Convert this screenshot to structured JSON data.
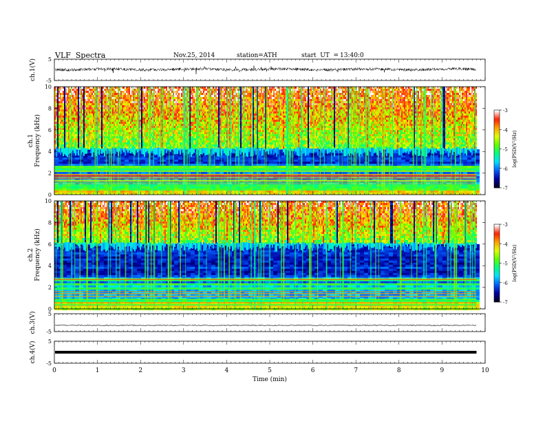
{
  "header": {
    "title": "VLF  Spectra",
    "date": "Nov.25, 2014",
    "station": "station=ATH",
    "start_label": "start  UT  =",
    "start_time": "13:40:0"
  },
  "chart_data": {
    "type": "heatmap",
    "xlabel": "Time  (min)",
    "xlim": [
      0,
      10
    ],
    "xticks": [
      "0",
      "1",
      "2",
      "3",
      "4",
      "5",
      "6",
      "7",
      "8",
      "9",
      "10"
    ],
    "data_end_min": 9.8,
    "panels": [
      {
        "name": "ch.1 waveform",
        "type": "line",
        "ylabel": "ch.1(V)",
        "ylim": [
          -5,
          5
        ],
        "yticks": [
          "5",
          "-5"
        ]
      },
      {
        "name": "ch.1 spectrogram",
        "type": "heatmap",
        "ylabel": "ch.1\nFrequency  (kHz)",
        "ylim": [
          0,
          10
        ],
        "yticks": [
          "0",
          "2",
          "4",
          "6",
          "8",
          "10"
        ],
        "noise_floor_khz": 4.2,
        "colorbar_label": "log(PSD(V²/Hz)",
        "colorbar_range": [
          -7,
          -3
        ],
        "colorbar_ticks": [
          "-3",
          "-4",
          "-5",
          "-6",
          "-7"
        ],
        "colors": [
          "#000020",
          "#0000a0",
          "#0060ff",
          "#00e0ff",
          "#00ff80",
          "#60ff00",
          "#e0ff00",
          "#ffa000",
          "#ff2000",
          "#ffffff"
        ]
      },
      {
        "name": "ch.2 spectrogram",
        "type": "heatmap",
        "ylabel": "ch.2\nFrequency  (kHz)",
        "ylim": [
          0,
          10
        ],
        "yticks": [
          "0",
          "2",
          "4",
          "6",
          "8",
          "10"
        ],
        "noise_floor_khz": 6.0,
        "colorbar_label": "log(PSD(V²/Hz)",
        "colorbar_range": [
          -7,
          -3
        ],
        "colorbar_ticks": [
          "-3",
          "-4",
          "-5",
          "-6",
          "-7"
        ],
        "colors": [
          "#000020",
          "#0000a0",
          "#0060ff",
          "#00e0ff",
          "#00ff80",
          "#60ff00",
          "#e0ff00",
          "#ffa000",
          "#ff2000",
          "#ffffff"
        ]
      },
      {
        "name": "ch.3 waveform",
        "type": "line",
        "ylabel": "ch.3(V)",
        "ylim": [
          -5,
          5
        ],
        "yticks": [
          "5",
          "-5"
        ],
        "level_v": -1.5
      },
      {
        "name": "ch.4 waveform",
        "type": "line",
        "ylabel": "ch.4(V)",
        "ylim": [
          -5,
          5
        ],
        "yticks": [
          "5",
          "-5"
        ],
        "level_v": 0
      }
    ]
  }
}
